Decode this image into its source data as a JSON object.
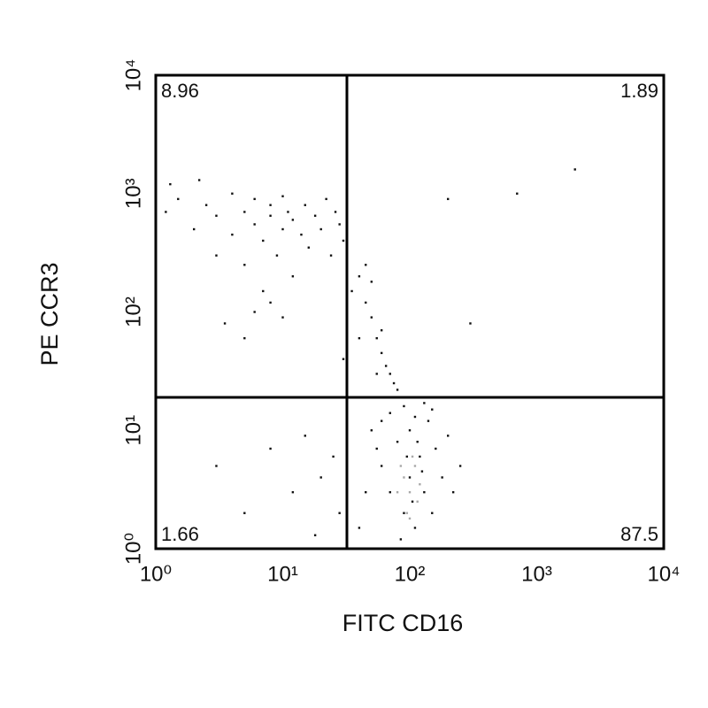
{
  "chart_data": {
    "type": "scatter",
    "x_label": "FITC CD16",
    "y_label": "PE CCR3",
    "log_x": true,
    "log_y": true,
    "grid": false,
    "xlim": [
      1,
      10000
    ],
    "ylim": [
      1,
      10000
    ],
    "xticks": [
      {
        "value": 1,
        "label": "10⁰"
      },
      {
        "value": 10,
        "label": "10¹"
      },
      {
        "value": 100,
        "label": "10²"
      },
      {
        "value": 1000,
        "label": "10³"
      },
      {
        "value": 10000,
        "label": "10⁴"
      }
    ],
    "yticks": [
      {
        "value": 1,
        "label": "10⁰"
      },
      {
        "value": 10,
        "label": "10¹"
      },
      {
        "value": 100,
        "label": "10²"
      },
      {
        "value": 1000,
        "label": "10³"
      },
      {
        "value": 10000,
        "label": "10⁴"
      }
    ],
    "gates": {
      "x": 32,
      "y": 19
    },
    "quadrants": [
      {
        "corner": "upper-left",
        "value": 8.96
      },
      {
        "corner": "upper-right",
        "value": 1.89
      },
      {
        "corner": "lower-left",
        "value": 1.66
      },
      {
        "corner": "lower-right",
        "value": 87.5
      }
    ],
    "series": [
      {
        "color": "#111111",
        "x": [
          1.2,
          1.5,
          2,
          2.5,
          3,
          3,
          4,
          4,
          5,
          5,
          6,
          6,
          7,
          7,
          8,
          8,
          9,
          10,
          10,
          11,
          12,
          12,
          14,
          15,
          16,
          18,
          20,
          22,
          24,
          26,
          28,
          30,
          3.5,
          5,
          6,
          8,
          10,
          1.3,
          2.2,
          35,
          40,
          45,
          50,
          55,
          60,
          65,
          70,
          45,
          50,
          60,
          75,
          80,
          40,
          55,
          30,
          60,
          70,
          80,
          90,
          100,
          100,
          110,
          120,
          130,
          140,
          150,
          160,
          180,
          200,
          220,
          250,
          70,
          90,
          110,
          130,
          150,
          85,
          95,
          105,
          115,
          125,
          45,
          50,
          40,
          55,
          60,
          3,
          5,
          8,
          12,
          15,
          20,
          25,
          28,
          18,
          300,
          700,
          2000,
          200
        ],
        "y": [
          700,
          900,
          500,
          800,
          300,
          650,
          450,
          1000,
          700,
          250,
          550,
          900,
          400,
          150,
          650,
          800,
          300,
          500,
          950,
          700,
          200,
          600,
          450,
          800,
          350,
          650,
          500,
          900,
          300,
          700,
          550,
          400,
          80,
          60,
          100,
          120,
          90,
          1200,
          1300,
          150,
          200,
          120,
          90,
          60,
          45,
          35,
          30,
          250,
          180,
          70,
          25,
          22,
          60,
          30,
          40,
          5,
          3,
          8,
          2,
          4,
          10,
          1.5,
          6,
          3,
          12,
          2,
          7,
          4,
          9,
          3,
          5,
          14,
          16,
          13,
          17,
          15,
          1.2,
          6,
          2.5,
          8,
          4.5,
          3,
          10,
          1.5,
          7,
          12,
          5,
          2,
          7,
          3,
          9,
          4,
          6,
          2,
          1.3,
          80,
          1000,
          1600,
          900
        ]
      },
      {
        "color": "#a8a8a8",
        "x": [
          80,
          90,
          100,
          110,
          95,
          105,
          120,
          85,
          100,
          115
        ],
        "y": [
          3,
          4,
          3,
          5,
          2,
          6,
          3.5,
          5,
          1.8,
          2.5
        ]
      }
    ]
  }
}
